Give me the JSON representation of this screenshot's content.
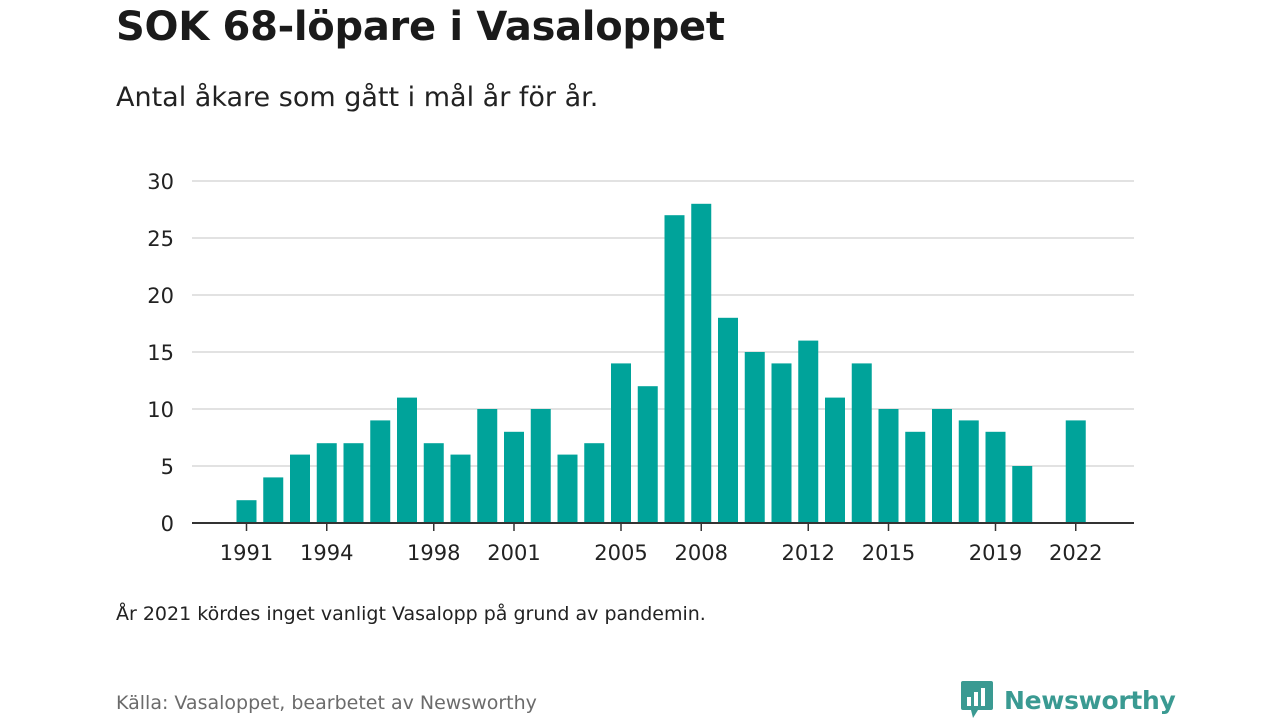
{
  "title": "SOK 68-löpare i Vasaloppet",
  "subtitle": "Antal åkare som gått i mål år för år.",
  "note": "År 2021 kördes inget vanligt Vasalopp på grund av pandemin.",
  "source": "Källa: Vasaloppet, bearbetet av Newsworthy",
  "brand": {
    "name": "Newsworthy",
    "icon": "newsworthy-logo-icon",
    "color": "#3a9a92"
  },
  "colors": {
    "bar": "#00a39a",
    "grid": "#d9d9d9",
    "axis": "#333333"
  },
  "chart_data": {
    "type": "bar",
    "categories": [
      1991,
      1992,
      1993,
      1994,
      1995,
      1996,
      1997,
      1998,
      1999,
      2000,
      2001,
      2002,
      2003,
      2004,
      2005,
      2006,
      2007,
      2008,
      2009,
      2010,
      2011,
      2012,
      2013,
      2014,
      2015,
      2016,
      2017,
      2018,
      2019,
      2020,
      2021,
      2022
    ],
    "values": [
      2,
      4,
      6,
      7,
      7,
      9,
      11,
      7,
      6,
      10,
      8,
      10,
      6,
      7,
      14,
      12,
      27,
      28,
      18,
      15,
      14,
      16,
      11,
      14,
      10,
      8,
      10,
      9,
      8,
      5,
      null,
      9
    ],
    "x_tick_labels": [
      "1991",
      "1994",
      "1998",
      "2001",
      "2005",
      "2008",
      "2012",
      "2015",
      "2019",
      "2022"
    ],
    "y_ticks": [
      0,
      5,
      10,
      15,
      20,
      25,
      30
    ],
    "ylim": [
      0,
      30
    ],
    "title": "SOK 68-löpare i Vasaloppet",
    "xlabel": "",
    "ylabel": "",
    "grid": true,
    "legend": "none"
  }
}
